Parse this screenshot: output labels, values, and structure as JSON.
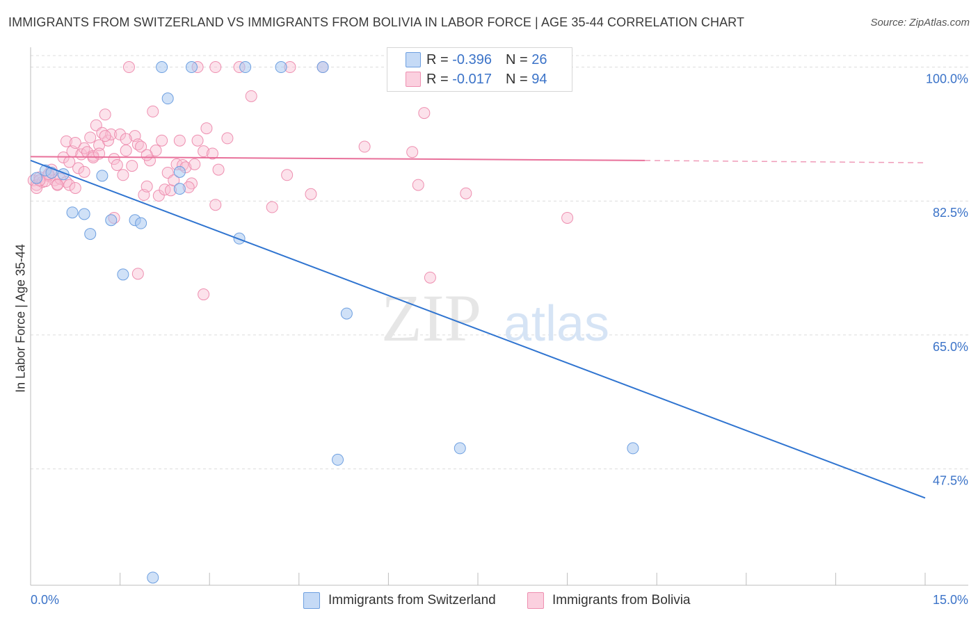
{
  "title": "IMMIGRANTS FROM SWITZERLAND VS IMMIGRANTS FROM BOLIVIA IN LABOR FORCE | AGE 35-44 CORRELATION CHART",
  "source": "Source: ZipAtlas.com",
  "watermark": {
    "zip": "ZIP",
    "atlas": "atlas"
  },
  "legend": {
    "swiss": {
      "r_label": "R = ",
      "r_value": "-0.396",
      "n_label": "N = ",
      "n_value": "26"
    },
    "bolivia": {
      "r_label": "R = ",
      "r_value": "-0.017",
      "n_label": "N = ",
      "n_value": "94"
    }
  },
  "colors": {
    "swiss_fill": "#a9c8f0",
    "swiss_stroke": "#6d9fe0",
    "swiss_line": "#2f74d0",
    "bolivia_fill": "#f8bfd3",
    "bolivia_stroke": "#ee8fb0",
    "bolivia_line": "#e8709a",
    "axis_text": "#3b73c8",
    "grid": "#dcdcdc"
  },
  "chart_data": {
    "type": "scatter",
    "title": "IMMIGRANTS FROM SWITZERLAND VS IMMIGRANTS FROM BOLIVIA IN LABOR FORCE | AGE 35-44 CORRELATION CHART",
    "xlabel": "",
    "ylabel": "In Labor Force | Age 35-44",
    "xlim": [
      0,
      15
    ],
    "ylim": [
      32.3,
      101.5
    ],
    "x_tick_labels": [
      "0.0%",
      "15.0%"
    ],
    "y_ticks": [
      47.5,
      65.0,
      82.5,
      100.0
    ],
    "y_tick_labels": [
      "47.5%",
      "65.0%",
      "82.5%",
      "100.0%"
    ],
    "grid": true,
    "legend_position": "top-center",
    "series": [
      {
        "name": "Immigrants from Switzerland",
        "points": [
          [
            2.2,
            100
          ],
          [
            2.7,
            100
          ],
          [
            3.6,
            100
          ],
          [
            4.2,
            100
          ],
          [
            4.9,
            100
          ],
          [
            0.1,
            85.5
          ],
          [
            0.25,
            86.5
          ],
          [
            0.35,
            86.2
          ],
          [
            0.55,
            86.0
          ],
          [
            1.2,
            85.8
          ],
          [
            2.3,
            95.9
          ],
          [
            2.5,
            86.3
          ],
          [
            2.5,
            84.1
          ],
          [
            0.7,
            81.0
          ],
          [
            0.9,
            80.8
          ],
          [
            1.0,
            78.2
          ],
          [
            1.35,
            80.0
          ],
          [
            1.75,
            80.0
          ],
          [
            1.85,
            79.6
          ],
          [
            3.5,
            77.6
          ],
          [
            1.55,
            72.9
          ],
          [
            5.3,
            67.8
          ],
          [
            5.15,
            48.7
          ],
          [
            7.2,
            50.2
          ],
          [
            10.1,
            50.2
          ],
          [
            2.05,
            33.3
          ]
        ],
        "trend": {
          "x": [
            0,
            15
          ],
          "y": [
            87.8,
            43.7
          ]
        }
      },
      {
        "name": "Immigrants from Bolivia",
        "points": [
          [
            1.65,
            100
          ],
          [
            2.8,
            100
          ],
          [
            3.1,
            100
          ],
          [
            3.5,
            100
          ],
          [
            4.35,
            100
          ],
          [
            4.9,
            100
          ],
          [
            0.05,
            85.2
          ],
          [
            0.1,
            84.6
          ],
          [
            0.15,
            85.6
          ],
          [
            0.2,
            85.0
          ],
          [
            0.3,
            85.8
          ],
          [
            0.35,
            86.6
          ],
          [
            0.4,
            85.2
          ],
          [
            0.45,
            84.7
          ],
          [
            0.5,
            85.4
          ],
          [
            0.55,
            88.2
          ],
          [
            0.6,
            90.3
          ],
          [
            0.65,
            87.6
          ],
          [
            0.7,
            89.0
          ],
          [
            0.75,
            90.1
          ],
          [
            0.8,
            86.8
          ],
          [
            0.85,
            88.6
          ],
          [
            0.9,
            89.4
          ],
          [
            0.95,
            88.9
          ],
          [
            1.0,
            90.8
          ],
          [
            1.05,
            88.4
          ],
          [
            1.1,
            92.4
          ],
          [
            1.15,
            89.8
          ],
          [
            1.2,
            91.4
          ],
          [
            1.25,
            93.8
          ],
          [
            1.3,
            90.4
          ],
          [
            1.35,
            91.2
          ],
          [
            1.4,
            88.0
          ],
          [
            1.45,
            87.2
          ],
          [
            1.5,
            91.2
          ],
          [
            1.55,
            85.9
          ],
          [
            1.6,
            89.1
          ],
          [
            1.7,
            87.1
          ],
          [
            1.75,
            91.0
          ],
          [
            1.8,
            89.9
          ],
          [
            1.85,
            89.6
          ],
          [
            1.9,
            83.3
          ],
          [
            1.95,
            84.4
          ],
          [
            2.0,
            87.8
          ],
          [
            2.05,
            94.2
          ],
          [
            2.1,
            89.1
          ],
          [
            2.15,
            83.2
          ],
          [
            2.2,
            90.4
          ],
          [
            2.25,
            84.0
          ],
          [
            2.3,
            86.2
          ],
          [
            2.35,
            83.9
          ],
          [
            2.4,
            85.2
          ],
          [
            2.45,
            87.3
          ],
          [
            2.5,
            90.4
          ],
          [
            2.55,
            87.2
          ],
          [
            2.6,
            86.9
          ],
          [
            2.7,
            84.8
          ],
          [
            2.8,
            90.4
          ],
          [
            2.9,
            89.0
          ],
          [
            2.95,
            92.0
          ],
          [
            3.1,
            82.0
          ],
          [
            3.15,
            86.6
          ],
          [
            3.3,
            90.7
          ],
          [
            3.7,
            96.2
          ],
          [
            4.05,
            81.7
          ],
          [
            4.3,
            85.9
          ],
          [
            4.7,
            83.4
          ],
          [
            5.6,
            89.6
          ],
          [
            6.4,
            88.9
          ],
          [
            6.5,
            84.6
          ],
          [
            6.6,
            94.0
          ],
          [
            6.7,
            72.5
          ],
          [
            7.3,
            83.5
          ],
          [
            9.0,
            80.3
          ],
          [
            1.8,
            73.0
          ],
          [
            2.9,
            70.3
          ],
          [
            0.6,
            85.0
          ],
          [
            0.9,
            86.3
          ],
          [
            1.4,
            80.3
          ],
          [
            0.45,
            84.6
          ],
          [
            0.25,
            85.1
          ],
          [
            0.1,
            84.2
          ],
          [
            1.05,
            88.2
          ],
          [
            1.6,
            90.6
          ],
          [
            2.75,
            87.3
          ],
          [
            0.3,
            86.0
          ],
          [
            0.65,
            84.6
          ],
          [
            1.25,
            91.0
          ],
          [
            0.15,
            85.2
          ],
          [
            1.95,
            88.5
          ],
          [
            3.05,
            88.7
          ],
          [
            0.75,
            84.2
          ],
          [
            2.65,
            84.3
          ],
          [
            1.15,
            88.7
          ]
        ],
        "trend": {
          "x": [
            0,
            10.3
          ],
          "y": [
            88.3,
            87.8
          ],
          "dashed_extension": {
            "x": [
              10.3,
              15
            ],
            "y": [
              87.8,
              87.5
            ]
          }
        }
      }
    ]
  },
  "bottom_legend": {
    "swiss_label": "Immigrants from Switzerland",
    "bolivia_label": "Immigrants from Bolivia"
  }
}
